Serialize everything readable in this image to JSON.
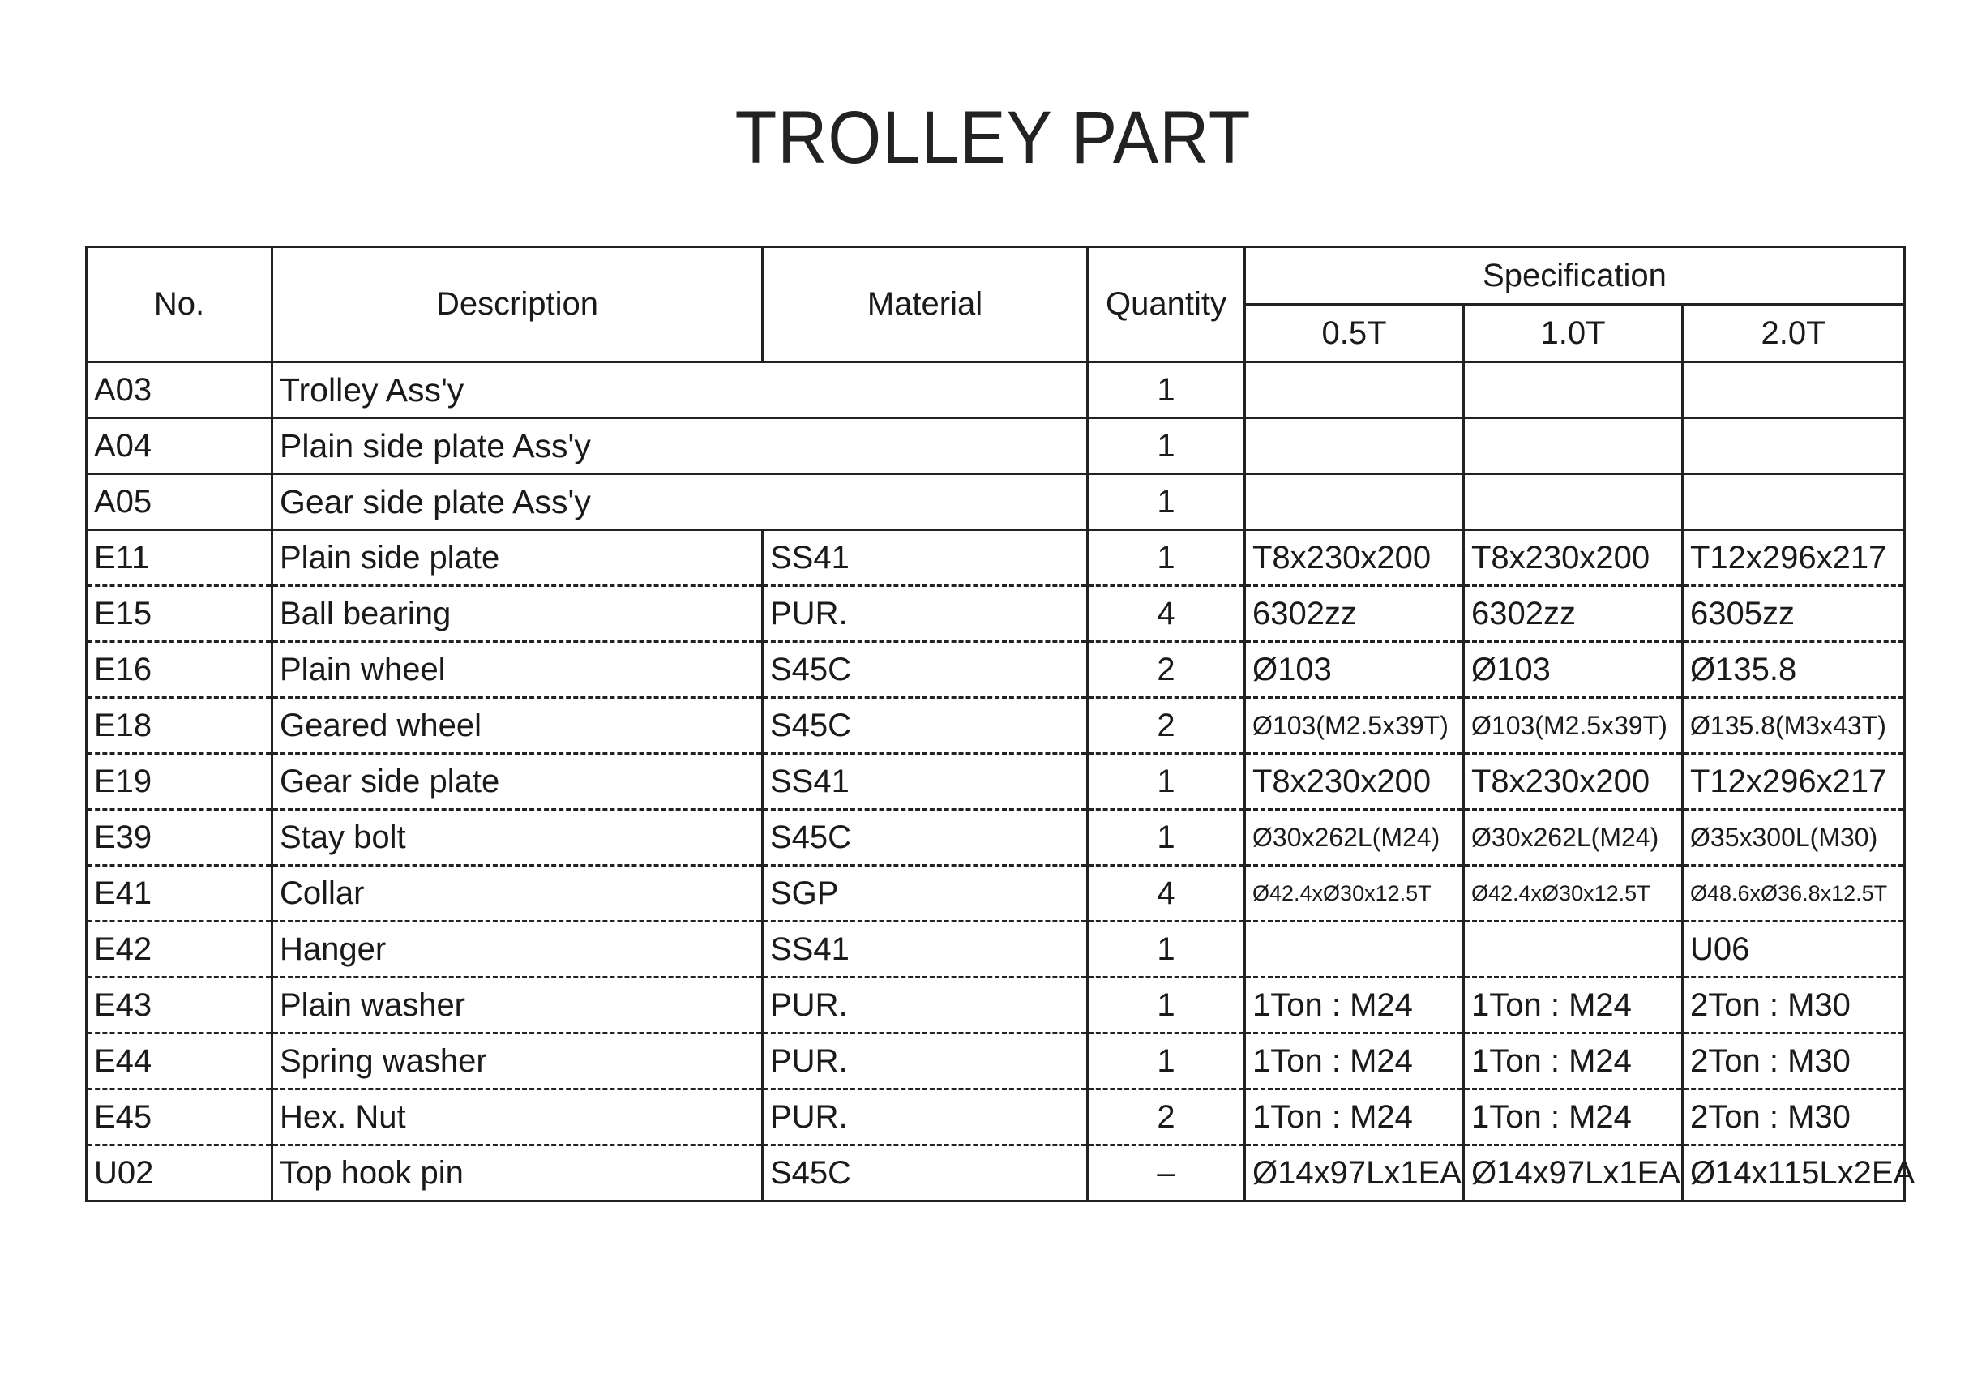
{
  "title": "TROLLEY PART",
  "headers": {
    "no": "No.",
    "description": "Description",
    "material": "Material",
    "quantity": "Quantity",
    "specification": "Specification",
    "spec_cols": [
      "0.5T",
      "1.0T",
      "2.0T"
    ]
  },
  "assemblies": [
    {
      "no": "A03",
      "description": "Trolley Ass'y",
      "quantity": "1"
    },
    {
      "no": "A04",
      "description": "Plain side plate Ass'y",
      "quantity": "1"
    },
    {
      "no": "A05",
      "description": "Gear side plate Ass'y",
      "quantity": "1"
    }
  ],
  "parts": [
    {
      "no": "E11",
      "description": "Plain side plate",
      "material": "SS41",
      "quantity": "1",
      "spec": [
        "T8x230x200",
        "T8x230x200",
        "T12x296x217"
      ],
      "size": ""
    },
    {
      "no": "E15",
      "description": "Ball bearing",
      "material": "PUR.",
      "quantity": "4",
      "spec": [
        "6302zz",
        "6302zz",
        "6305zz"
      ],
      "size": ""
    },
    {
      "no": "E16",
      "description": "Plain wheel",
      "material": "S45C",
      "quantity": "2",
      "spec": [
        "Ø103",
        "Ø103",
        "Ø135.8"
      ],
      "size": ""
    },
    {
      "no": "E18",
      "description": "Geared wheel",
      "material": "S45C",
      "quantity": "2",
      "spec": [
        "Ø103(M2.5x39T)",
        "Ø103(M2.5x39T)",
        "Ø135.8(M3x43T)"
      ],
      "size": "sm"
    },
    {
      "no": "E19",
      "description": "Gear side plate",
      "material": "SS41",
      "quantity": "1",
      "spec": [
        "T8x230x200",
        "T8x230x200",
        "T12x296x217"
      ],
      "size": ""
    },
    {
      "no": "E39",
      "description": "Stay bolt",
      "material": "S45C",
      "quantity": "1",
      "spec": [
        "Ø30x262L(M24)",
        "Ø30x262L(M24)",
        "Ø35x300L(M30)"
      ],
      "size": "sm"
    },
    {
      "no": "E41",
      "description": "Collar",
      "material": "SGP",
      "quantity": "4",
      "spec": [
        "Ø42.4xØ30x12.5T",
        "Ø42.4xØ30x12.5T",
        "Ø48.6xØ36.8x12.5T"
      ],
      "size": "xs"
    },
    {
      "no": "E42",
      "description": "Hanger",
      "material": "SS41",
      "quantity": "1",
      "spec": [
        "",
        "",
        "U06"
      ],
      "size": ""
    },
    {
      "no": "E43",
      "description": "Plain washer",
      "material": "PUR.",
      "quantity": "1",
      "spec": [
        "1Ton : M24",
        "1Ton : M24",
        "2Ton : M30"
      ],
      "size": ""
    },
    {
      "no": "E44",
      "description": "Spring washer",
      "material": "PUR.",
      "quantity": "1",
      "spec": [
        "1Ton : M24",
        "1Ton : M24",
        "2Ton : M30"
      ],
      "size": ""
    },
    {
      "no": "E45",
      "description": "Hex. Nut",
      "material": "PUR.",
      "quantity": "2",
      "spec": [
        "1Ton : M24",
        "1Ton : M24",
        "2Ton : M30"
      ],
      "size": ""
    },
    {
      "no": "U02",
      "description": "Top hook pin",
      "material": "S45C",
      "quantity": "–",
      "spec": [
        "Ø14x97Lx1EA",
        "Ø14x97Lx1EA",
        "Ø14x115Lx2EA"
      ],
      "size": ""
    }
  ]
}
